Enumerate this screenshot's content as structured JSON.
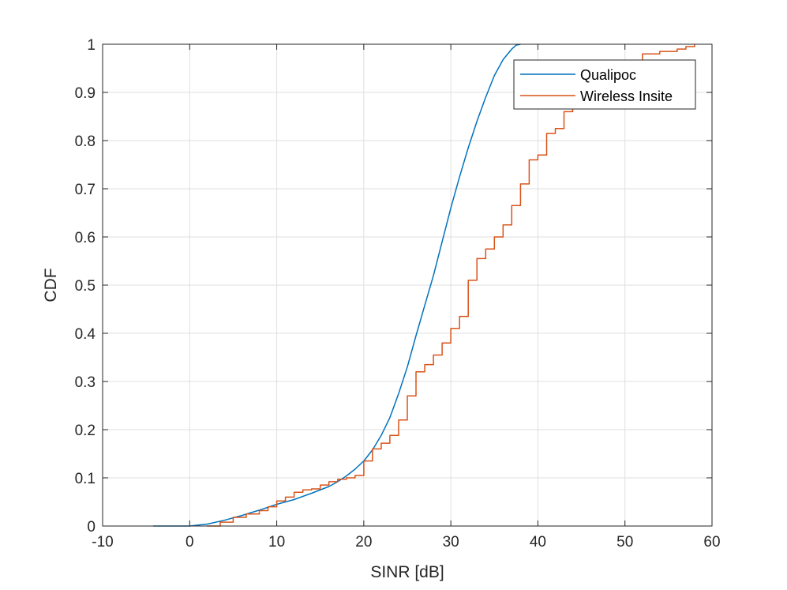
{
  "chart_data": {
    "type": "line",
    "title": "",
    "xlabel": "SINR [dB]",
    "ylabel": "CDF",
    "xlim": [
      -10,
      60
    ],
    "ylim": [
      0,
      1
    ],
    "xticks": [
      "-10",
      "0",
      "10",
      "20",
      "30",
      "40",
      "50",
      "60"
    ],
    "yticks": [
      "0",
      "0.1",
      "0.2",
      "0.3",
      "0.4",
      "0.5",
      "0.6",
      "0.7",
      "0.8",
      "0.9",
      "1"
    ],
    "grid": true,
    "legend_position": "top-right",
    "series": [
      {
        "name": "Qualipoc",
        "color": "#0072BD",
        "step": false,
        "x": [
          -4.2,
          0,
          2,
          4,
          6,
          8,
          10,
          12,
          14,
          16,
          17,
          18,
          19,
          20,
          21,
          22,
          23,
          24,
          25,
          26,
          27,
          28,
          29,
          30,
          31,
          32,
          33,
          34,
          35,
          36,
          37,
          37.5,
          38
        ],
        "y": [
          0,
          0,
          0.004,
          0.012,
          0.022,
          0.033,
          0.045,
          0.055,
          0.068,
          0.082,
          0.092,
          0.104,
          0.118,
          0.135,
          0.158,
          0.188,
          0.225,
          0.275,
          0.33,
          0.395,
          0.458,
          0.52,
          0.59,
          0.66,
          0.725,
          0.785,
          0.84,
          0.89,
          0.935,
          0.968,
          0.99,
          0.998,
          1.0
        ]
      },
      {
        "name": "Wireless Insite",
        "color": "#D95319",
        "step": true,
        "x": [
          2,
          3.5,
          5,
          6.5,
          8,
          9,
          10,
          11,
          12,
          13,
          14,
          15,
          16,
          17,
          18,
          19,
          20,
          21,
          22,
          23,
          24,
          25,
          26,
          27,
          28,
          29,
          30,
          31,
          32,
          33,
          34,
          35,
          36,
          37,
          38,
          39,
          40,
          41,
          42,
          43,
          44,
          45,
          46,
          48,
          50,
          52,
          54,
          56,
          57,
          58
        ],
        "y": [
          0,
          0.008,
          0.018,
          0.025,
          0.032,
          0.04,
          0.052,
          0.06,
          0.07,
          0.075,
          0.077,
          0.085,
          0.092,
          0.097,
          0.1,
          0.105,
          0.135,
          0.16,
          0.172,
          0.188,
          0.22,
          0.27,
          0.32,
          0.335,
          0.355,
          0.38,
          0.41,
          0.435,
          0.51,
          0.555,
          0.575,
          0.6,
          0.625,
          0.665,
          0.71,
          0.76,
          0.77,
          0.815,
          0.825,
          0.86,
          0.89,
          0.9,
          0.918,
          0.938,
          0.96,
          0.98,
          0.985,
          0.99,
          0.995,
          1.0
        ]
      }
    ]
  }
}
